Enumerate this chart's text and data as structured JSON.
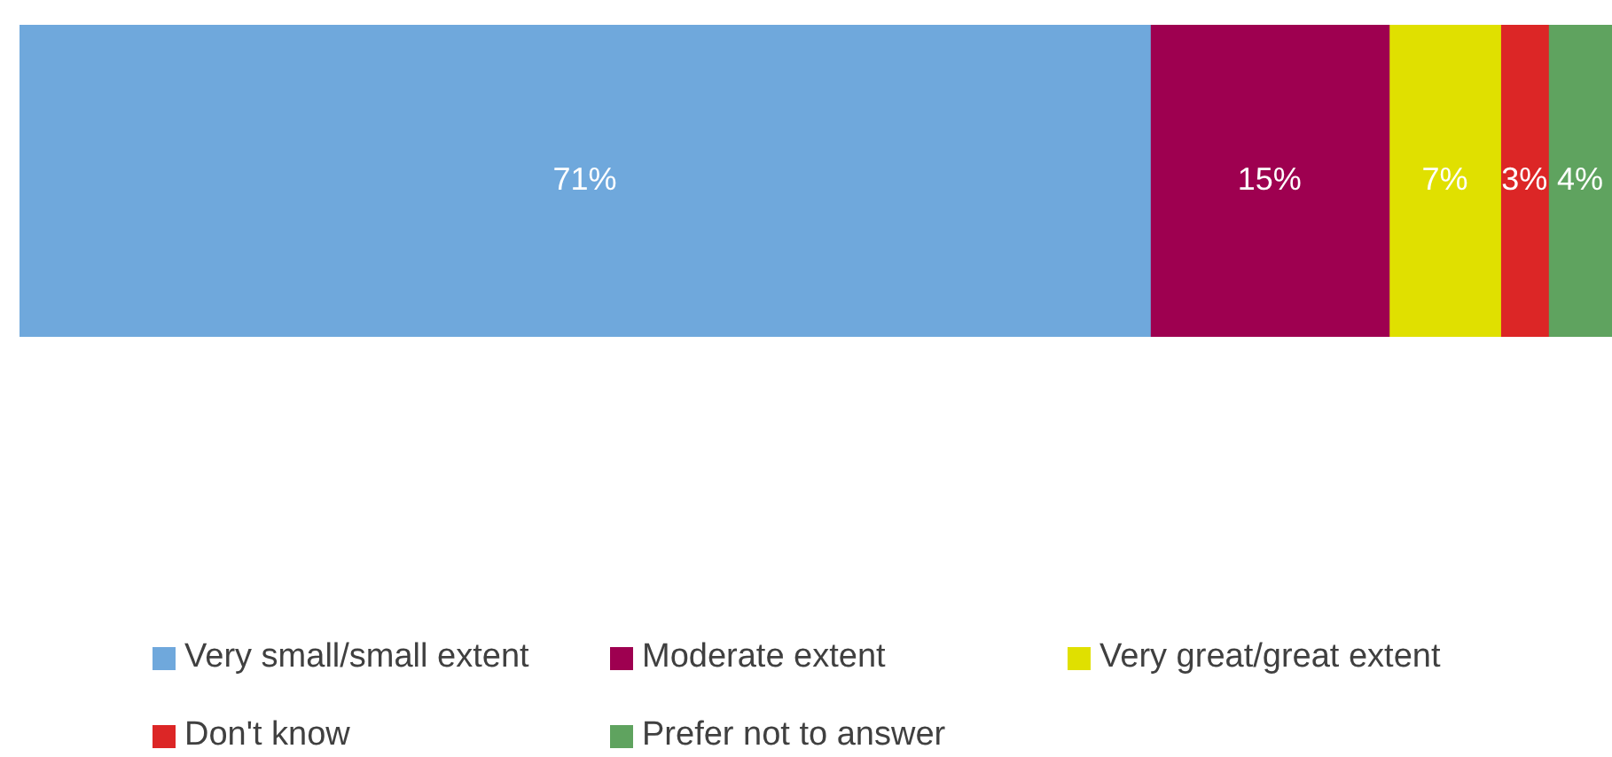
{
  "chart_data": {
    "type": "bar",
    "orientation": "horizontal",
    "stacked": true,
    "categories": [
      null
    ],
    "legend": "bottom",
    "xlim": [
      0,
      100
    ],
    "tick_labels": false,
    "series": [
      {
        "name": "Very small/small extent",
        "color": "#6fa8dc",
        "values": [
          71
        ],
        "value_labels": [
          "71%"
        ]
      },
      {
        "name": "Moderate extent",
        "color": "#9e0050",
        "values": [
          15
        ],
        "value_labels": [
          "15%"
        ]
      },
      {
        "name": "Very great/great extent",
        "color": "#e0e000",
        "values": [
          7
        ],
        "value_labels": [
          "7%"
        ]
      },
      {
        "name": "Don't know",
        "color": "#dc2626",
        "values": [
          3
        ],
        "value_labels": [
          "3%"
        ]
      },
      {
        "name": "Prefer not to answer",
        "color": "#5fa35f",
        "values": [
          4
        ],
        "value_labels": [
          "4%"
        ]
      }
    ]
  }
}
